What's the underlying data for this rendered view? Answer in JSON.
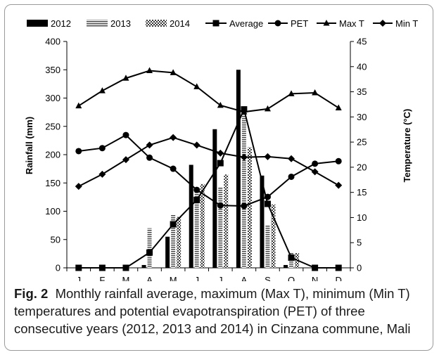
{
  "caption": {
    "label": "Fig. 2",
    "text": "Monthly rainfall average, maximum (Max T), minimum (Min T) temperatures and potential evapotranspiration (PET) of three consecutive years (2012, 2013 and 2014) in Cinzana commune, Mali"
  },
  "colors": {
    "series_2012": "#000000",
    "series_2013": "#555555",
    "series_2014": "#555555",
    "lines": "#000000"
  },
  "chart_data": {
    "type": "bar",
    "categories": [
      "J",
      "F",
      "M",
      "A",
      "M",
      "J",
      "J",
      "A",
      "S",
      "O",
      "N",
      "D"
    ],
    "ylabel": "Rainfall (mm)",
    "y2label": "Temperature (°C)",
    "ylim": [
      0,
      400
    ],
    "yticks": [
      0,
      50,
      100,
      150,
      200,
      250,
      300,
      350,
      400
    ],
    "y2lim": [
      0,
      45
    ],
    "y2ticks": [
      0,
      5,
      10,
      15,
      20,
      25,
      30,
      35,
      40,
      45
    ],
    "grid": false,
    "legend_position": "top",
    "series": [
      {
        "name": "2012",
        "kind": "bar",
        "pattern": "solid",
        "axis": "left",
        "values": [
          0,
          0,
          0,
          5,
          55,
          182,
          245,
          350,
          163,
          5,
          0,
          0
        ]
      },
      {
        "name": "2013",
        "kind": "bar",
        "pattern": "horizontal-stripes",
        "axis": "left",
        "values": [
          0,
          0,
          0,
          70,
          95,
          140,
          143,
          280,
          75,
          28,
          0,
          0
        ]
      },
      {
        "name": "2014",
        "kind": "bar",
        "pattern": "checker",
        "axis": "left",
        "values": [
          0,
          0,
          0,
          0,
          90,
          148,
          165,
          213,
          112,
          26,
          0,
          0
        ]
      },
      {
        "name": "Average",
        "kind": "line",
        "marker": "square",
        "axis": "left",
        "values": [
          0,
          0,
          0,
          27,
          77,
          120,
          185,
          280,
          113,
          18,
          0,
          0
        ]
      },
      {
        "name": "PET",
        "kind": "line",
        "marker": "circle",
        "axis": "right",
        "values": [
          23.2,
          23.8,
          26.4,
          21.9,
          19.7,
          15.5,
          12.4,
          12.3,
          14.1,
          18.1,
          20.7,
          21.2
        ]
      },
      {
        "name": "Max T",
        "kind": "line",
        "marker": "triangle",
        "axis": "right",
        "values": [
          32.2,
          35.2,
          37.7,
          39.2,
          38.8,
          36.0,
          32.3,
          31.0,
          31.6,
          34.6,
          34.8,
          31.8
        ]
      },
      {
        "name": "Min T",
        "kind": "line",
        "marker": "diamond",
        "axis": "right",
        "values": [
          16.2,
          18.6,
          21.5,
          24.4,
          25.9,
          24.4,
          22.8,
          22.0,
          22.1,
          21.7,
          19.1,
          16.4
        ]
      }
    ]
  }
}
